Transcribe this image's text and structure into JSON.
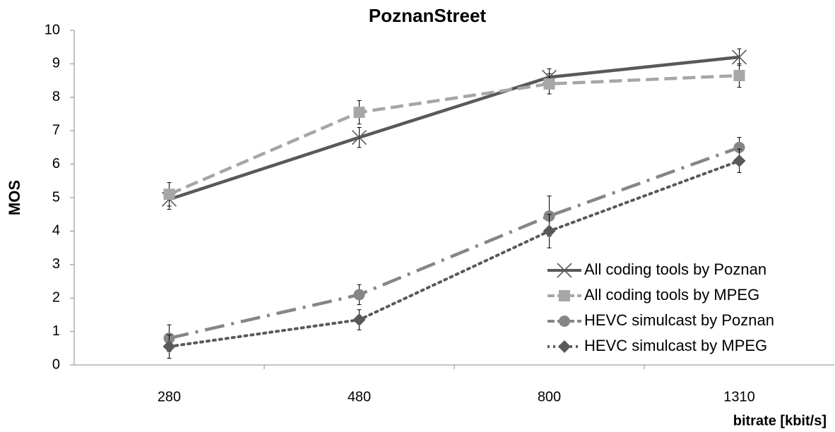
{
  "chart_data": {
    "type": "line",
    "title": "PoznanStreet",
    "x_label": "bitrate [kbit/s]",
    "y_label": "MOS",
    "categories": [
      "280",
      "480",
      "800",
      "1310"
    ],
    "ylim": [
      0,
      10
    ],
    "yticks": [
      0,
      1,
      2,
      3,
      4,
      5,
      6,
      7,
      8,
      9,
      10
    ],
    "grid": false,
    "legend": "lower right",
    "series": [
      {
        "name": "All coding tools by Poznan",
        "color": "#595959",
        "marker": "x",
        "dash": "solid",
        "values": [
          4.95,
          6.8,
          8.6,
          9.2
        ],
        "errors": [
          0.3,
          0.3,
          0.25,
          0.25
        ]
      },
      {
        "name": "All coding tools by MPEG",
        "color": "#a6a6a6",
        "marker": "square",
        "dash": "dashed",
        "values": [
          5.1,
          7.55,
          8.4,
          8.65
        ],
        "errors": [
          0.35,
          0.35,
          0.3,
          0.35
        ]
      },
      {
        "name": "HEVC simulcast by Poznan",
        "color": "#868686",
        "marker": "circle",
        "dash": "dashdot",
        "values": [
          0.8,
          2.1,
          4.45,
          6.5
        ],
        "errors": [
          0.4,
          0.3,
          0.6,
          0.3
        ]
      },
      {
        "name": "HEVC simulcast by MPEG",
        "color": "#595959",
        "marker": "diamond",
        "dash": "dotted",
        "values": [
          0.55,
          1.35,
          4.0,
          6.1
        ],
        "errors": [
          0.35,
          0.3,
          0.5,
          0.35
        ]
      }
    ]
  }
}
